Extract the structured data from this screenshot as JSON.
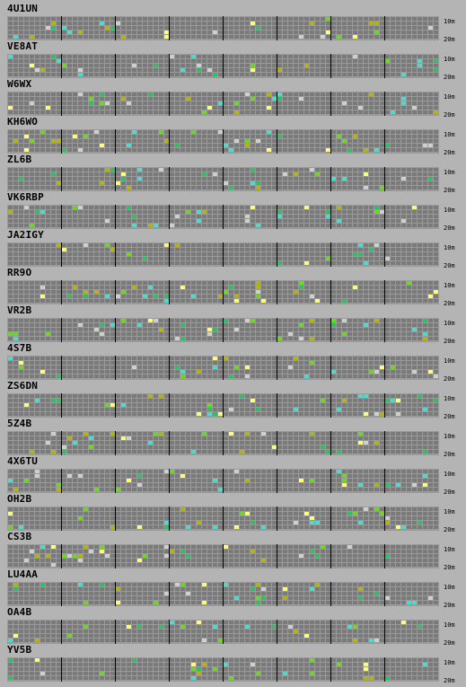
{
  "beacons": [
    {
      "call": "4U1UN"
    },
    {
      "call": "VE8AT"
    },
    {
      "call": "W6WX"
    },
    {
      "call": "KH6WO"
    },
    {
      "call": "ZL6B"
    },
    {
      "call": "VK6RBP"
    },
    {
      "call": "JA2IGY"
    },
    {
      "call": "RR9O"
    },
    {
      "call": "VR2B"
    },
    {
      "call": "4S7B"
    },
    {
      "call": "ZS6DN"
    },
    {
      "call": "5Z4B"
    },
    {
      "call": "4X6TU"
    },
    {
      "call": "OH2B"
    },
    {
      "call": "CS3B"
    },
    {
      "call": "LU4AA"
    },
    {
      "call": "OA4B"
    },
    {
      "call": "YV5B"
    }
  ],
  "band_labels": {
    "top": "10m",
    "bottom": "20m"
  },
  "colors": {
    "background": "#b4b4b4",
    "cell_empty": "#7a7a7a",
    "grid_line": "#9a9a9a",
    "separator": "#000000",
    "signal_strong": "#ffff66",
    "signal_medium": "#b5b500",
    "signal_green": "#22c55e",
    "signal_cyan": "#40e0d0",
    "signal_grey": "#cfcfcf",
    "signal_lime": "#66dd11"
  },
  "grid": {
    "blocks": 8,
    "cols_per_block": 10,
    "bands": 5
  }
}
